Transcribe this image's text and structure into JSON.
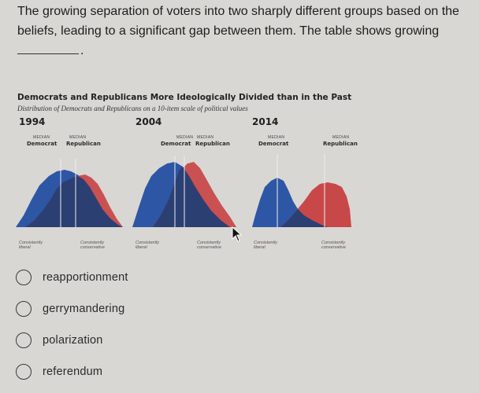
{
  "question": {
    "line1": "The growing separation of voters into two sharply different groups based on the",
    "line2": "beliefs, leading to a significant gap between them. The table shows growing"
  },
  "figure": {
    "title": "Democrats and Republicans More Ideologically Divided than in the Past",
    "subtitle": "Distribution of Democrats and Republicans on a 10-item scale of political values",
    "median_label": "MEDIAN",
    "democrat_label": "Democrat",
    "republican_label": "Republican",
    "axis_left": "Consistently liberal",
    "axis_right": "Consistently conservative",
    "colors": {
      "democrat": "#2d56a5",
      "republican": "#c5393a",
      "overlap": "#2c3f73"
    },
    "panels": [
      {
        "year": "1994"
      },
      {
        "year": "2004"
      },
      {
        "year": "2014"
      }
    ]
  },
  "options": [
    {
      "label": "reapportionment"
    },
    {
      "label": "gerrymandering"
    },
    {
      "label": "polarization"
    },
    {
      "label": "referendum"
    }
  ],
  "cursor_icon": "arrow-pointer-icon"
}
